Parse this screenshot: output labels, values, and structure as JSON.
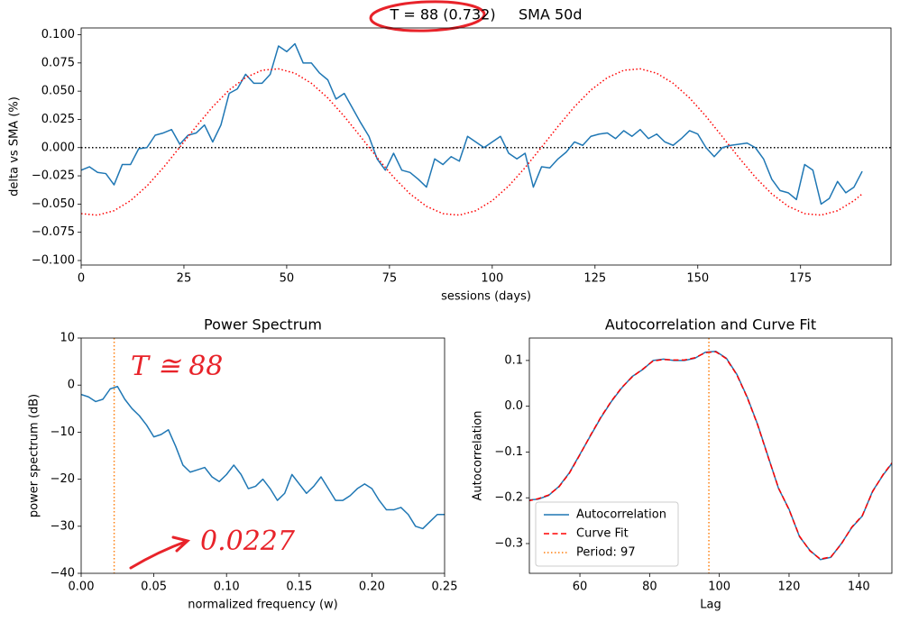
{
  "chart_data": [
    {
      "type": "line",
      "title": "T = 88 (0.732)     SMA 50d",
      "xlabel": "sessions (days)",
      "ylabel": "delta vs SMA (%)",
      "xlim": [
        0,
        197
      ],
      "ylim": [
        -0.104,
        0.106
      ],
      "xticks": [
        0,
        25,
        50,
        75,
        100,
        125,
        150,
        175
      ],
      "yticks": [
        {
          "value": -0.1,
          "label": "−0.100"
        },
        {
          "value": -0.075,
          "label": "−0.075"
        },
        {
          "value": -0.05,
          "label": "−0.050"
        },
        {
          "value": -0.025,
          "label": "−0.025"
        },
        {
          "value": 0,
          "label": "0.000"
        },
        {
          "value": 0.025,
          "label": "0.025"
        },
        {
          "value": 0.05,
          "label": "0.050"
        },
        {
          "value": 0.075,
          "label": "0.075"
        },
        {
          "value": 0.1,
          "label": "0.100"
        }
      ],
      "hline": {
        "y": 0,
        "color": "#000000",
        "style": "dotted"
      },
      "series": [
        {
          "color": "#1f77b4",
          "style": "solid",
          "x": [
            0,
            2,
            4,
            6,
            8,
            10,
            12,
            14,
            16,
            18,
            20,
            22,
            24,
            26,
            28,
            30,
            32,
            34,
            36,
            38,
            40,
            42,
            44,
            46,
            48,
            50,
            52,
            54,
            56,
            58,
            60,
            62,
            64,
            66,
            68,
            70,
            72,
            74,
            76,
            78,
            80,
            82,
            84,
            86,
            88,
            90,
            92,
            94,
            96,
            98,
            100,
            102,
            104,
            106,
            108,
            110,
            112,
            114,
            116,
            118,
            120,
            122,
            124,
            126,
            128,
            130,
            132,
            134,
            136,
            138,
            140,
            142,
            144,
            146,
            148,
            150,
            152,
            154,
            156,
            158,
            160,
            162,
            164,
            166,
            168,
            170,
            172,
            174,
            176,
            178,
            180,
            182,
            184,
            186,
            188,
            190
          ],
          "values": [
            -0.02,
            -0.017,
            -0.022,
            -0.023,
            -0.033,
            -0.015,
            -0.015,
            -0.001,
            0.0,
            0.011,
            0.013,
            0.016,
            0.003,
            0.011,
            0.013,
            0.02,
            0.005,
            0.02,
            0.048,
            0.052,
            0.065,
            0.057,
            0.057,
            0.065,
            0.09,
            0.085,
            0.092,
            0.075,
            0.075,
            0.066,
            0.06,
            0.043,
            0.048,
            0.035,
            0.022,
            0.01,
            -0.01,
            -0.02,
            -0.005,
            -0.02,
            -0.022,
            -0.028,
            -0.035,
            -0.01,
            -0.015,
            -0.008,
            -0.012,
            0.01,
            0.005,
            0.0,
            0.005,
            0.01,
            -0.005,
            -0.01,
            -0.005,
            -0.035,
            -0.017,
            -0.018,
            -0.01,
            -0.004,
            0.005,
            0.002,
            0.01,
            0.012,
            0.013,
            0.008,
            0.015,
            0.01,
            0.016,
            0.008,
            0.012,
            0.005,
            0.002,
            0.008,
            0.015,
            0.012,
            0.0,
            -0.008,
            0.0,
            0.002,
            0.003,
            0.004,
            0.0,
            -0.01,
            -0.028,
            -0.038,
            -0.04,
            -0.046,
            -0.015,
            -0.02,
            -0.05,
            -0.045,
            -0.03,
            -0.04,
            -0.035,
            -0.021
          ]
        },
        {
          "color": "#ff0000",
          "style": "dotted",
          "x": [
            0,
            4,
            8,
            12,
            16,
            20,
            24,
            28,
            32,
            36,
            40,
            44,
            48,
            52,
            56,
            60,
            64,
            68,
            72,
            76,
            80,
            84,
            88,
            92,
            96,
            100,
            104,
            108,
            112,
            116,
            120,
            124,
            128,
            132,
            136,
            140,
            144,
            148,
            152,
            156,
            160,
            164,
            168,
            172,
            176,
            180,
            184,
            188,
            190
          ],
          "values": [
            -0.0585,
            -0.0598,
            -0.0559,
            -0.047,
            -0.034,
            -0.0177,
            0.0004,
            0.0188,
            0.0362,
            0.051,
            0.062,
            0.0685,
            0.0698,
            0.0659,
            0.057,
            0.044,
            0.0277,
            0.0096,
            -0.0088,
            -0.0262,
            -0.041,
            -0.052,
            -0.0585,
            -0.0598,
            -0.0559,
            -0.047,
            -0.034,
            -0.0177,
            0.0004,
            0.0188,
            0.0362,
            0.051,
            0.062,
            0.0685,
            0.0698,
            0.0659,
            0.057,
            0.044,
            0.0277,
            0.0096,
            -0.0088,
            -0.0262,
            -0.041,
            -0.052,
            -0.0585,
            -0.0598,
            -0.0559,
            -0.047,
            -0.041
          ]
        }
      ]
    },
    {
      "type": "line",
      "title": "Power Spectrum",
      "xlabel": "normalized frequency (w)",
      "ylabel": "power spectrum (dB)",
      "xlim": [
        0,
        0.25
      ],
      "ylim": [
        -40,
        10
      ],
      "xticks": [
        {
          "value": 0,
          "label": "0.00"
        },
        {
          "value": 0.05,
          "label": "0.05"
        },
        {
          "value": 0.1,
          "label": "0.10"
        },
        {
          "value": 0.15,
          "label": "0.15"
        },
        {
          "value": 0.2,
          "label": "0.20"
        },
        {
          "value": 0.25,
          "label": "0.25"
        }
      ],
      "yticks": [
        {
          "value": -40,
          "label": "−40"
        },
        {
          "value": -30,
          "label": "−30"
        },
        {
          "value": -20,
          "label": "−20"
        },
        {
          "value": -10,
          "label": "−10"
        },
        0,
        10
      ],
      "vline": {
        "x": 0.0227,
        "color": "#ff7f0e",
        "style": "dotted"
      },
      "annotations": [
        "T ≅ 88",
        "0.0227"
      ],
      "series": [
        {
          "color": "#1f77b4",
          "style": "solid",
          "x": [
            0,
            0.005,
            0.01,
            0.015,
            0.02,
            0.025,
            0.03,
            0.035,
            0.04,
            0.045,
            0.05,
            0.055,
            0.06,
            0.065,
            0.07,
            0.075,
            0.08,
            0.085,
            0.09,
            0.095,
            0.1,
            0.105,
            0.11,
            0.115,
            0.12,
            0.125,
            0.13,
            0.135,
            0.14,
            0.145,
            0.15,
            0.155,
            0.16,
            0.165,
            0.17,
            0.175,
            0.18,
            0.185,
            0.19,
            0.195,
            0.2,
            0.205,
            0.21,
            0.215,
            0.22,
            0.225,
            0.23,
            0.235,
            0.24,
            0.245,
            0.25
          ],
          "values": [
            -2,
            -2.5,
            -3.5,
            -3,
            -0.8,
            -0.3,
            -3,
            -5,
            -6.5,
            -8.5,
            -11,
            -10.5,
            -9.5,
            -13,
            -17,
            -18.5,
            -18,
            -17.5,
            -19.5,
            -20.5,
            -19,
            -17,
            -19,
            -22,
            -21.5,
            -20,
            -22,
            -24.5,
            -23,
            -19,
            -21,
            -23,
            -21.5,
            -19.5,
            -22,
            -24.5,
            -24.5,
            -23.5,
            -22,
            -21,
            -22,
            -24.5,
            -26.5,
            -26.5,
            -26,
            -27.5,
            -30,
            -30.5,
            -29,
            -27.5,
            -27.5
          ]
        }
      ]
    },
    {
      "type": "line",
      "title": "Autocorrelation and Curve Fit",
      "xlabel": "Lag",
      "ylabel": "Autocorrelation",
      "xlim": [
        45.5,
        149.5
      ],
      "ylim": [
        -0.365,
        0.149
      ],
      "xticks": [
        60,
        80,
        100,
        120,
        140
      ],
      "yticks": [
        {
          "value": -0.3,
          "label": "−0.3"
        },
        {
          "value": -0.2,
          "label": "−0.2"
        },
        {
          "value": -0.1,
          "label": "−0.1"
        },
        {
          "value": 0,
          "label": "0.0"
        },
        0.1
      ],
      "legend": "lower left",
      "vline": {
        "name": "Period: 97",
        "x": 97,
        "color": "#ff7f0e",
        "style": "dotted"
      },
      "series": [
        {
          "name": "Autocorrelation",
          "color": "#1f77b4",
          "style": "solid",
          "x": [
            45,
            48,
            51,
            54,
            57,
            60,
            63,
            66,
            69,
            72,
            75,
            78,
            81,
            84,
            87,
            90,
            93,
            96,
            99,
            102,
            105,
            108,
            111,
            114,
            117,
            120,
            123,
            126,
            129,
            132,
            135,
            138,
            141,
            144,
            147,
            149.5
          ],
          "values": [
            -0.205,
            -0.203,
            -0.195,
            -0.175,
            -0.145,
            -0.105,
            -0.065,
            -0.025,
            0.01,
            0.04,
            0.065,
            0.08,
            0.1,
            0.103,
            0.1,
            0.1,
            0.105,
            0.118,
            0.12,
            0.105,
            0.07,
            0.02,
            -0.04,
            -0.11,
            -0.18,
            -0.225,
            -0.285,
            -0.315,
            -0.335,
            -0.33,
            -0.3,
            -0.265,
            -0.24,
            -0.185,
            -0.15,
            -0.125
          ]
        },
        {
          "name": "Curve Fit",
          "color": "#ff0000",
          "style": "dashed",
          "x": [
            45,
            48,
            51,
            54,
            57,
            60,
            63,
            66,
            69,
            72,
            75,
            78,
            81,
            84,
            87,
            90,
            93,
            96,
            99,
            102,
            105,
            108,
            111,
            114,
            117,
            120,
            123,
            126,
            129,
            132,
            135,
            138,
            141,
            144,
            147,
            149.5
          ],
          "values": [
            -0.207,
            -0.202,
            -0.194,
            -0.176,
            -0.146,
            -0.106,
            -0.064,
            -0.024,
            0.011,
            0.041,
            0.064,
            0.081,
            0.099,
            0.102,
            0.101,
            0.101,
            0.106,
            0.117,
            0.119,
            0.104,
            0.069,
            0.019,
            -0.041,
            -0.111,
            -0.179,
            -0.226,
            -0.284,
            -0.316,
            -0.334,
            -0.329,
            -0.301,
            -0.264,
            -0.239,
            -0.186,
            -0.149,
            -0.124
          ]
        }
      ]
    }
  ]
}
